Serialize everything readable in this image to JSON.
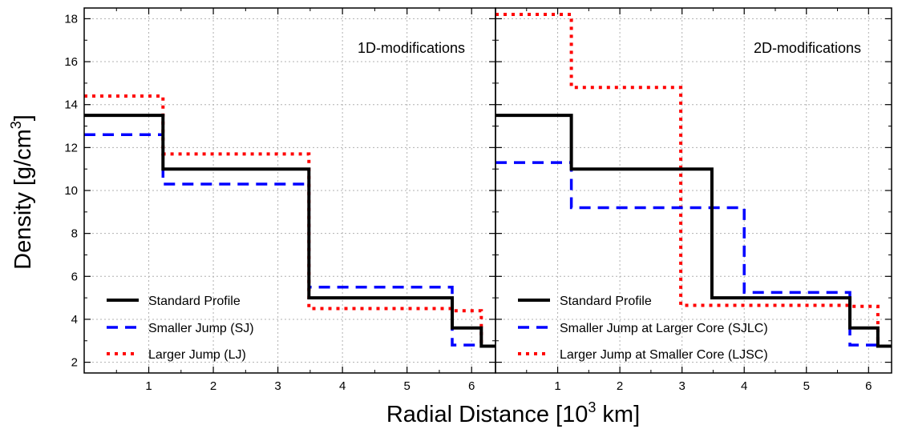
{
  "figure": {
    "ylabel": "Density [g/cm",
    "ylabel_sup": "3",
    "ylabel_end": "]",
    "xlabel": "Radial Distance [10",
    "xlabel_sup": "3",
    "xlabel_end": " km]"
  },
  "colors": {
    "standard": "#000000",
    "smaller": "#0000ff",
    "larger": "#ff0000",
    "grid": "#b0b0b0"
  },
  "chart_data": [
    {
      "type": "line",
      "title": "1D-modifications",
      "xlim": [
        0,
        6.37
      ],
      "ylim": [
        1.5,
        18.5
      ],
      "xticks": [
        1,
        2,
        3,
        4,
        5,
        6
      ],
      "yticks": [
        2,
        4,
        6,
        8,
        10,
        12,
        14,
        16,
        18
      ],
      "grid": true,
      "legend_position": "bottom-left",
      "series": [
        {
          "name": "Standard Profile",
          "style": "solid",
          "color": "#000000",
          "x": [
            0,
            1.22,
            1.22,
            3.48,
            3.48,
            5.7,
            5.7,
            6.15,
            6.15,
            6.37
          ],
          "y": [
            13.5,
            13.5,
            11.0,
            11.0,
            5.0,
            5.0,
            3.6,
            3.6,
            2.75,
            2.75
          ]
        },
        {
          "name": "Smaller Jump (SJ)",
          "style": "dashed",
          "color": "#0000ff",
          "x": [
            0,
            1.22,
            1.22,
            3.48,
            3.48,
            5.7,
            5.7,
            6.15,
            6.15,
            6.37
          ],
          "y": [
            12.6,
            12.6,
            10.3,
            10.3,
            5.5,
            5.5,
            2.8,
            2.8,
            2.75,
            2.75
          ]
        },
        {
          "name": "Larger Jump (LJ)",
          "style": "dotted",
          "color": "#ff0000",
          "x": [
            0,
            1.22,
            1.22,
            3.48,
            3.48,
            5.7,
            5.7,
            6.15,
            6.15,
            6.37
          ],
          "y": [
            14.4,
            14.4,
            11.7,
            11.7,
            4.5,
            4.5,
            4.4,
            4.4,
            2.75,
            2.75
          ]
        }
      ]
    },
    {
      "type": "line",
      "title": "2D-modifications",
      "xlim": [
        0,
        6.37
      ],
      "ylim": [
        1.5,
        18.5
      ],
      "xticks": [
        1,
        2,
        3,
        4,
        5,
        6
      ],
      "yticks": [
        2,
        4,
        6,
        8,
        10,
        12,
        14,
        16,
        18
      ],
      "grid": true,
      "legend_position": "bottom-left",
      "series": [
        {
          "name": "Standard Profile",
          "style": "solid",
          "color": "#000000",
          "x": [
            0,
            1.22,
            1.22,
            3.48,
            3.48,
            5.7,
            5.7,
            6.15,
            6.15,
            6.37
          ],
          "y": [
            13.5,
            13.5,
            11.0,
            11.0,
            5.0,
            5.0,
            3.6,
            3.6,
            2.75,
            2.75
          ]
        },
        {
          "name": "Smaller Jump at Larger Core (SJLC)",
          "style": "dashed",
          "color": "#0000ff",
          "x": [
            0,
            1.22,
            1.22,
            4.0,
            4.0,
            5.7,
            5.7,
            6.15,
            6.15,
            6.37
          ],
          "y": [
            11.3,
            11.3,
            9.2,
            9.2,
            5.25,
            5.25,
            2.8,
            2.8,
            2.75,
            2.75
          ]
        },
        {
          "name": "Larger Jump at Smaller Core (LJSC)",
          "style": "dotted",
          "color": "#ff0000",
          "x": [
            0,
            1.22,
            1.22,
            2.98,
            2.98,
            5.7,
            5.7,
            6.15,
            6.15,
            6.37
          ],
          "y": [
            18.2,
            18.2,
            14.8,
            14.8,
            4.65,
            4.65,
            4.6,
            4.6,
            2.75,
            2.75
          ]
        }
      ]
    }
  ]
}
